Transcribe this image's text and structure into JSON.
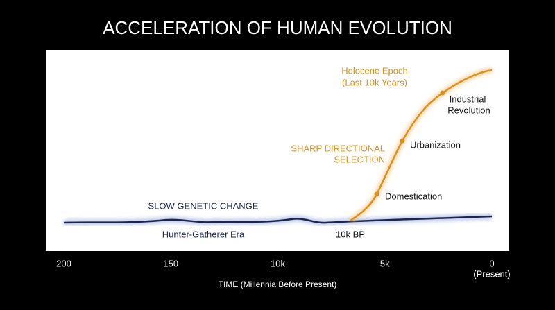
{
  "title": "ACCELERATION OF HUMAN EVOLUTION",
  "x_axis": {
    "ticks": [
      "200",
      "150",
      "10k",
      "5k",
      "0"
    ],
    "present_label": "(Present)",
    "label": "TIME (Millennia Before Present)"
  },
  "annotations": {
    "holocene": [
      "Holocene Epoch",
      "(Last 10k Years)"
    ],
    "industrial": [
      "Industrial",
      "Revolution"
    ],
    "urbanization": "Urbanization",
    "sharp": [
      "SHARP DIRECTIONAL",
      "SELECTION"
    ],
    "domestication": "Domestication",
    "slow": "SLOW GENETIC CHANGE",
    "hunter": "Hunter-Gatherer Era",
    "bp": "10k BP"
  }
}
